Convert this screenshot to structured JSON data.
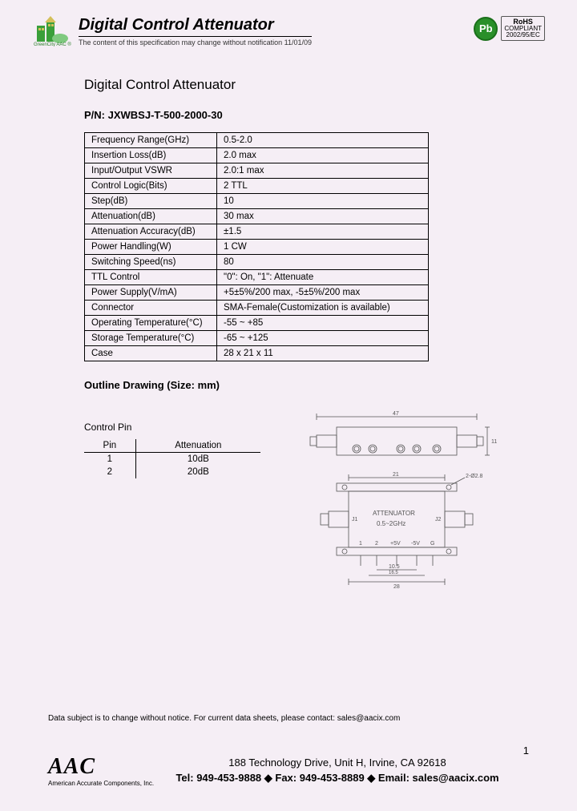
{
  "header": {
    "brand_small": "GreenCity AAC",
    "title": "Digital Control Attenuator",
    "subtitle": "The content of this specification may change without notification 11/01/09",
    "pb_label": "Pb",
    "rohs_line1": "RoHS",
    "rohs_line2": "COMPLIANT",
    "rohs_line3": "2002/95/EC"
  },
  "doc": {
    "title": "Digital Control Attenuator",
    "pn_label": "P/N: ",
    "pn_value": "JXWBSJ-T-500-2000-30"
  },
  "specs": {
    "rows": [
      {
        "k": "Frequency Range(GHz)",
        "v": "0.5-2.0"
      },
      {
        "k": "Insertion Loss(dB)",
        "v": "2.0 max"
      },
      {
        "k": "Input/Output VSWR",
        "v": "2.0:1 max"
      },
      {
        "k": "Control Logic(Bits)",
        "v": "2 TTL"
      },
      {
        "k": "Step(dB)",
        "v": "10"
      },
      {
        "k": "Attenuation(dB)",
        "v": "30 max"
      },
      {
        "k": "Attenuation Accuracy(dB)",
        "v": "±1.5"
      },
      {
        "k": "Power Handling(W)",
        "v": "1 CW"
      },
      {
        "k": "Switching Speed(ns)",
        "v": "80"
      },
      {
        "k": "TTL Control",
        "v": "\"0\": On, \"1\": Attenuate"
      },
      {
        "k": "Power Supply(V/mA)",
        "v": "+5±5%/200 max, -5±5%/200 max"
      },
      {
        "k": "Connector",
        "v": "SMA-Female(Customization is available)"
      },
      {
        "k": "Operating Temperature(°C)",
        "v": "-55 ~ +85"
      },
      {
        "k": "Storage Temperature(°C)",
        "v": "-65 ~ +125"
      },
      {
        "k": "Case",
        "v": "28 x 21 x 11"
      }
    ]
  },
  "outline": {
    "heading": "Outline Drawing (Size: mm)",
    "control_pin_label": "Control Pin",
    "pin_header_1": "Pin",
    "pin_header_2": "Attenuation",
    "pins": [
      {
        "pin": "1",
        "att": "10dB"
      },
      {
        "pin": "2",
        "att": "20dB"
      }
    ],
    "drawing": {
      "dim_top": "47",
      "dim_h1": "11",
      "dim_w2": "21",
      "hole_label": "2-Ø2.8",
      "block_text1": "ATTENUATOR",
      "block_text2": "0.5~2GHz",
      "j1": "J1",
      "j2": "J2",
      "pin_labels": [
        "1",
        "2",
        "+5V",
        "-5V",
        "G"
      ],
      "dim_105": "10.5",
      "dim_165": "16.5",
      "dim_28": "28"
    }
  },
  "disclaimer": "Data subject is to change without notice.  For current data sheets, please contact:  sales@aacix.com",
  "footer": {
    "logo_big": "AAC",
    "logo_small": "American Accurate Components, Inc.",
    "address": "188 Technology Drive, Unit H, Irvine, CA 92618",
    "contact": "Tel: 949-453-9888 ◆ Fax: 949-453-8889 ◆ Email: sales@aacix.com",
    "page": "1"
  },
  "colors": {
    "bg": "#f5eef5",
    "green": "#2a8f2a",
    "border": "#000000"
  }
}
